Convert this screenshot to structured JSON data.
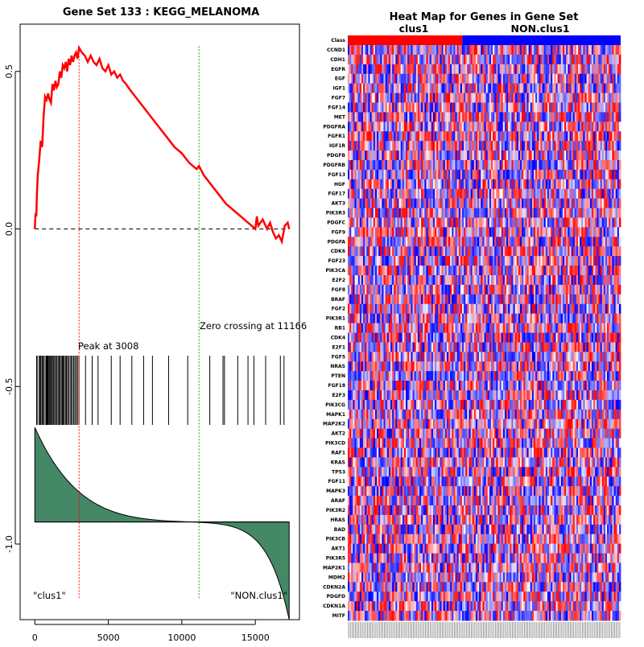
{
  "chart_data": [
    {
      "type": "line",
      "title": "Gene Set  133 : KEGG_MELANOMA",
      "xlim": [
        -1000,
        18000
      ],
      "ylim": [
        -1.24,
        0.65
      ],
      "x_ticks": [
        0,
        5000,
        10000,
        15000
      ],
      "y_ticks": [
        0.5,
        0.0,
        -0.5,
        -1.0
      ],
      "series": [
        {
          "x": [
            0,
            50,
            100,
            150,
            200,
            300,
            400,
            500,
            600,
            700,
            800,
            900,
            1000,
            1100,
            1200,
            1300,
            1400,
            1500,
            1600,
            1700,
            1800,
            1900,
            2000,
            2100,
            2200,
            2300,
            2400,
            2500,
            2600,
            2700,
            2800,
            2900,
            3008,
            3200,
            3400,
            3600,
            3800,
            4000,
            4200,
            4400,
            4600,
            4800,
            5000,
            5200,
            5400,
            5600,
            5800,
            6000,
            6200,
            6500,
            7000,
            7500,
            8000,
            8500,
            9000,
            9500,
            10000,
            10500,
            11000,
            11166,
            11500,
            12000,
            12500,
            13000,
            13500,
            14000,
            14500,
            15000,
            15100,
            15200,
            15500,
            15800,
            16000,
            16200,
            16400,
            16600,
            16800,
            17000,
            17200,
            17300
          ],
          "y": [
            0.0,
            0.05,
            0.04,
            0.12,
            0.17,
            0.22,
            0.28,
            0.26,
            0.36,
            0.42,
            0.41,
            0.43,
            0.41,
            0.4,
            0.46,
            0.44,
            0.47,
            0.45,
            0.46,
            0.5,
            0.48,
            0.52,
            0.51,
            0.53,
            0.5,
            0.54,
            0.52,
            0.55,
            0.53,
            0.55,
            0.56,
            0.54,
            0.575,
            0.56,
            0.55,
            0.53,
            0.55,
            0.53,
            0.52,
            0.54,
            0.51,
            0.5,
            0.52,
            0.49,
            0.5,
            0.48,
            0.49,
            0.47,
            0.46,
            0.44,
            0.41,
            0.38,
            0.35,
            0.32,
            0.29,
            0.26,
            0.24,
            0.21,
            0.19,
            0.2,
            0.17,
            0.14,
            0.11,
            0.08,
            0.06,
            0.04,
            0.02,
            0.0,
            0.04,
            0.01,
            0.03,
            0.0,
            0.02,
            -0.01,
            -0.03,
            -0.02,
            -0.04,
            0.01,
            0.02,
            0.0
          ]
        }
      ],
      "zero_line_y": 0.0,
      "hit_x": [
        120,
        160,
        290,
        360,
        400,
        480,
        540,
        600,
        700,
        780,
        830,
        860,
        900,
        960,
        1020,
        1080,
        1150,
        1200,
        1280,
        1350,
        1420,
        1500,
        1580,
        1650,
        1720,
        1800,
        1870,
        1930,
        2000,
        2080,
        2150,
        2230,
        2300,
        2400,
        2480,
        2560,
        2650,
        2730,
        2820,
        2900,
        3000,
        3450,
        3900,
        4300,
        5200,
        5800,
        6600,
        7400,
        8000,
        9100,
        10400,
        11900,
        12800,
        12900,
        13800,
        14500,
        14900,
        15700,
        16700,
        16950
      ],
      "peak": {
        "x": 3008,
        "label": "Peak at 3008"
      },
      "zero_crossing": {
        "x": 11166,
        "label": "Zero crossing at 11166"
      },
      "baseline_y": -0.93,
      "ranked_metric": {
        "start_y": -0.63,
        "end_y": -1.24
      },
      "group_labels": [
        "\"clus1\"",
        "\"NON.clus1\""
      ],
      "colors": {
        "es_line": "#ff0000",
        "peak_line": "#ff0000",
        "zero_line": "#00aa00",
        "fill": "#448866"
      }
    },
    {
      "type": "heatmap",
      "title": "Heat Map for Genes in Gene Set",
      "class_row_label": "Class",
      "classes": [
        {
          "name": "clus1",
          "color": "#ff0000",
          "fraction": 0.42
        },
        {
          "name": "NON.clus1",
          "color": "#0000ff",
          "fraction": 0.58
        }
      ],
      "genes": [
        "CCND1",
        "CDH1",
        "EGFR",
        "EGF",
        "IGF1",
        "FGF7",
        "FGF14",
        "MET",
        "PDGFRA",
        "FGFR1",
        "IGF1R",
        "PDGFB",
        "PDGFRB",
        "FGF13",
        "HGF",
        "FGF17",
        "AKT3",
        "PIK3R3",
        "PDGFC",
        "FGF9",
        "PDGFA",
        "CDK6",
        "FGF23",
        "PIK3CA",
        "E2F2",
        "FGF8",
        "BRAF",
        "FGF2",
        "PIK3R1",
        "RB1",
        "CDK4",
        "E2F1",
        "FGF5",
        "NRAS",
        "PTEN",
        "FGF18",
        "E2F3",
        "PIK3CG",
        "MAPK1",
        "MAP2K2",
        "AKT2",
        "PIK3CD",
        "RAF1",
        "KRAS",
        "TP53",
        "FGF11",
        "MAPK3",
        "ARAF",
        "PIK3R2",
        "HRAS",
        "BAD",
        "PIK3CB",
        "AKT1",
        "PIK3R5",
        "MAP2K1",
        "MDM2",
        "CDKN2A",
        "PDGFD",
        "CDKN1A",
        "MITF"
      ],
      "n_samples": 160,
      "palette": [
        "#0000ff",
        "#ff0000",
        "#ffffff"
      ]
    }
  ]
}
